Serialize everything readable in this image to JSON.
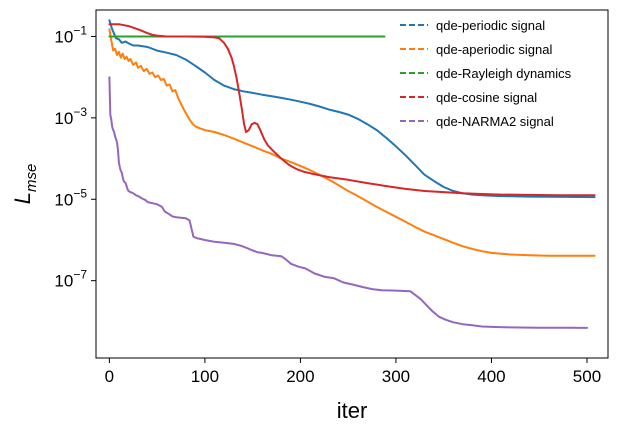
{
  "chart_data": {
    "type": "line",
    "title": "",
    "xlabel": "iter",
    "ylabel": {
      "main": "L",
      "sub": "mse"
    },
    "xlim": [
      -14,
      522
    ],
    "ylim_log10": [
      -8.9,
      -0.35
    ],
    "yscale": "log",
    "grid": false,
    "legend_position": "top-right",
    "x_ticks": [
      0,
      100,
      200,
      300,
      400,
      500
    ],
    "x_tick_labels": [
      "0",
      "100",
      "200",
      "300",
      "400",
      "500"
    ],
    "y_ticks_log10": [
      -1,
      -3,
      -5,
      -7
    ],
    "y_tick_labels": [
      {
        "base": "10",
        "exp": "−1"
      },
      {
        "base": "10",
        "exp": "−3"
      },
      {
        "base": "10",
        "exp": "−5"
      },
      {
        "base": "10",
        "exp": "−7"
      }
    ],
    "series": [
      {
        "name": "qde-periodic signal",
        "color": "#1f77b4",
        "points": [
          [
            0,
            0.25
          ],
          [
            3,
            0.15
          ],
          [
            7,
            0.09
          ],
          [
            10,
            0.085
          ],
          [
            13,
            0.07
          ],
          [
            17,
            0.075
          ],
          [
            20,
            0.068
          ],
          [
            25,
            0.06
          ],
          [
            30,
            0.06
          ],
          [
            40,
            0.055
          ],
          [
            50,
            0.045
          ],
          [
            60,
            0.04
          ],
          [
            70,
            0.035
          ],
          [
            80,
            0.027
          ],
          [
            90,
            0.019
          ],
          [
            100,
            0.013
          ],
          [
            110,
            0.0085
          ],
          [
            120,
            0.0062
          ],
          [
            130,
            0.0051
          ],
          [
            140,
            0.0045
          ],
          [
            150,
            0.0041
          ],
          [
            160,
            0.0037
          ],
          [
            170,
            0.0034
          ],
          [
            180,
            0.0031
          ],
          [
            190,
            0.0028
          ],
          [
            200,
            0.0025
          ],
          [
            210,
            0.0022
          ],
          [
            220,
            0.0019
          ],
          [
            230,
            0.0016
          ],
          [
            240,
            0.0014
          ],
          [
            250,
            0.0012
          ],
          [
            260,
            0.00095
          ],
          [
            270,
            0.0007
          ],
          [
            280,
            0.0005
          ],
          [
            290,
            0.00032
          ],
          [
            300,
            0.0002
          ],
          [
            310,
            0.00012
          ],
          [
            320,
            7e-05
          ],
          [
            330,
            4e-05
          ],
          [
            340,
            2.8e-05
          ],
          [
            350,
            2e-05
          ],
          [
            360,
            1.6e-05
          ],
          [
            370,
            1.4e-05
          ],
          [
            380,
            1.3e-05
          ],
          [
            390,
            1.25e-05
          ],
          [
            400,
            1.22e-05
          ],
          [
            420,
            1.18e-05
          ],
          [
            440,
            1.16e-05
          ],
          [
            460,
            1.15e-05
          ],
          [
            480,
            1.14e-05
          ],
          [
            508,
            1.13e-05
          ]
        ]
      },
      {
        "name": "qde-aperiodic signal",
        "color": "#ff7f0e",
        "points": [
          [
            0,
            0.15
          ],
          [
            2,
            0.08
          ],
          [
            4,
            0.045
          ],
          [
            6,
            0.05
          ],
          [
            8,
            0.035
          ],
          [
            10,
            0.042
          ],
          [
            12,
            0.03
          ],
          [
            14,
            0.038
          ],
          [
            16,
            0.028
          ],
          [
            18,
            0.032
          ],
          [
            20,
            0.025
          ],
          [
            22,
            0.028
          ],
          [
            25,
            0.02
          ],
          [
            28,
            0.023
          ],
          [
            30,
            0.017
          ],
          [
            33,
            0.019
          ],
          [
            36,
            0.014
          ],
          [
            39,
            0.016
          ],
          [
            42,
            0.012
          ],
          [
            45,
            0.013
          ],
          [
            48,
            0.01
          ],
          [
            51,
            0.011
          ],
          [
            54,
            0.0085
          ],
          [
            57,
            0.009
          ],
          [
            60,
            0.0062
          ],
          [
            63,
            0.0066
          ],
          [
            66,
            0.0045
          ],
          [
            69,
            0.0048
          ],
          [
            72,
            0.0031
          ],
          [
            75,
            0.0022
          ],
          [
            78,
            0.0016
          ],
          [
            81,
            0.0012
          ],
          [
            84,
            0.0009
          ],
          [
            87,
            0.00072
          ],
          [
            90,
            0.00062
          ],
          [
            95,
            0.00055
          ],
          [
            100,
            0.0005
          ],
          [
            110,
            0.00045
          ],
          [
            120,
            0.00038
          ],
          [
            130,
            0.00031
          ],
          [
            140,
            0.00025
          ],
          [
            150,
            0.0002
          ],
          [
            160,
            0.00016
          ],
          [
            170,
            0.00013
          ],
          [
            180,
            0.0001
          ],
          [
            190,
            8.2e-05
          ],
          [
            200,
            6.6e-05
          ],
          [
            210,
            5.2e-05
          ],
          [
            220,
            4e-05
          ],
          [
            230,
            3e-05
          ],
          [
            240,
            2.2e-05
          ],
          [
            250,
            1.6e-05
          ],
          [
            260,
            1.2e-05
          ],
          [
            270,
            8.8e-06
          ],
          [
            280,
            6.5e-06
          ],
          [
            290,
            4.9e-06
          ],
          [
            300,
            3.7e-06
          ],
          [
            310,
            2.8e-06
          ],
          [
            320,
            2.1e-06
          ],
          [
            330,
            1.6e-06
          ],
          [
            340,
            1.3e-06
          ],
          [
            350,
            1.05e-06
          ],
          [
            360,
            8.5e-07
          ],
          [
            370,
            7e-07
          ],
          [
            380,
            6e-07
          ],
          [
            390,
            5.3e-07
          ],
          [
            400,
            4.8e-07
          ],
          [
            420,
            4.4e-07
          ],
          [
            440,
            4.2e-07
          ],
          [
            460,
            4.1e-07
          ],
          [
            480,
            4.1e-07
          ],
          [
            508,
            4.1e-07
          ]
        ]
      },
      {
        "name": "qde-Rayleigh dynamics",
        "color": "#2ca02c",
        "points": [
          [
            0,
            0.1
          ],
          [
            50,
            0.1
          ],
          [
            100,
            0.1
          ],
          [
            150,
            0.1
          ],
          [
            200,
            0.1
          ],
          [
            250,
            0.1
          ],
          [
            288,
            0.1
          ]
        ]
      },
      {
        "name": "qde-cosine signal",
        "color": "#d62728",
        "points": [
          [
            0,
            0.2
          ],
          [
            10,
            0.2
          ],
          [
            20,
            0.18
          ],
          [
            30,
            0.15
          ],
          [
            40,
            0.12
          ],
          [
            45,
            0.11
          ],
          [
            50,
            0.105
          ],
          [
            60,
            0.1
          ],
          [
            80,
            0.1
          ],
          [
            100,
            0.098
          ],
          [
            110,
            0.095
          ],
          [
            115,
            0.09
          ],
          [
            120,
            0.07
          ],
          [
            124,
            0.05
          ],
          [
            128,
            0.03
          ],
          [
            130,
            0.02
          ],
          [
            133,
            0.01
          ],
          [
            136,
            0.004
          ],
          [
            139,
            0.0015
          ],
          [
            141,
            0.0007
          ],
          [
            143,
            0.00045
          ],
          [
            146,
            0.0005
          ],
          [
            149,
            0.0007
          ],
          [
            152,
            0.00075
          ],
          [
            155,
            0.0007
          ],
          [
            158,
            0.0005
          ],
          [
            162,
            0.0003
          ],
          [
            166,
            0.00021
          ],
          [
            172,
            0.00015
          ],
          [
            180,
            0.0001
          ],
          [
            188,
            7e-05
          ],
          [
            196,
            5.5e-05
          ],
          [
            204,
            4.7e-05
          ],
          [
            215,
            4.1e-05
          ],
          [
            230,
            3.5e-05
          ],
          [
            250,
            3e-05
          ],
          [
            270,
            2.5e-05
          ],
          [
            290,
            2.1e-05
          ],
          [
            310,
            1.8e-05
          ],
          [
            330,
            1.6e-05
          ],
          [
            350,
            1.5e-05
          ],
          [
            370,
            1.4e-05
          ],
          [
            390,
            1.35e-05
          ],
          [
            410,
            1.3e-05
          ],
          [
            440,
            1.28e-05
          ],
          [
            470,
            1.26e-05
          ],
          [
            508,
            1.25e-05
          ]
        ]
      },
      {
        "name": "qde-NARMA2 signal",
        "color": "#9467bd",
        "points": [
          [
            0,
            0.01
          ],
          [
            1,
            0.0012
          ],
          [
            2,
            0.0009
          ],
          [
            3,
            0.0006
          ],
          [
            4,
            0.0005
          ],
          [
            5,
            0.00045
          ],
          [
            6,
            0.00035
          ],
          [
            7,
            0.0003
          ],
          [
            8,
            0.00025
          ],
          [
            9,
            0.00016
          ],
          [
            10,
            8e-05
          ],
          [
            11,
            6e-05
          ],
          [
            12,
            5e-05
          ],
          [
            13,
            4.5e-05
          ],
          [
            14,
            3.5e-05
          ],
          [
            15,
            2.8e-05
          ],
          [
            17,
            2.5e-05
          ],
          [
            19,
            1.8e-05
          ],
          [
            20,
            1.6e-05
          ],
          [
            22,
            1.5e-05
          ],
          [
            25,
            1.4e-05
          ],
          [
            28,
            1.25e-05
          ],
          [
            30,
            1.2e-05
          ],
          [
            34,
            1.05e-05
          ],
          [
            38,
            9.5e-06
          ],
          [
            40,
            8.5e-06
          ],
          [
            45,
            8e-06
          ],
          [
            50,
            7.5e-06
          ],
          [
            55,
            6.5e-06
          ],
          [
            58,
            5e-06
          ],
          [
            62,
            4.4e-06
          ],
          [
            66,
            3.8e-06
          ],
          [
            70,
            3.6e-06
          ],
          [
            75,
            3.5e-06
          ],
          [
            80,
            3.4e-06
          ],
          [
            84,
            3e-06
          ],
          [
            88,
            1.2e-06
          ],
          [
            92,
            1.1e-06
          ],
          [
            96,
            1.05e-06
          ],
          [
            100,
            1e-06
          ],
          [
            110,
            9e-07
          ],
          [
            120,
            8.5e-07
          ],
          [
            130,
            8e-07
          ],
          [
            138,
            7.2e-07
          ],
          [
            145,
            6.2e-07
          ],
          [
            150,
            5.5e-07
          ],
          [
            155,
            5e-07
          ],
          [
            160,
            4.8e-07
          ],
          [
            170,
            4.2e-07
          ],
          [
            180,
            4e-07
          ],
          [
            185,
            3.3e-07
          ],
          [
            190,
            2.6e-07
          ],
          [
            198,
            2.2e-07
          ],
          [
            205,
            2e-07
          ],
          [
            215,
            1.5e-07
          ],
          [
            225,
            1.25e-07
          ],
          [
            235,
            1.15e-07
          ],
          [
            245,
            9e-08
          ],
          [
            255,
            8e-08
          ],
          [
            265,
            7e-08
          ],
          [
            275,
            6.2e-08
          ],
          [
            285,
            5.8e-08
          ],
          [
            300,
            5.7e-08
          ],
          [
            315,
            5.5e-08
          ],
          [
            320,
            4.5e-08
          ],
          [
            326,
            3.5e-08
          ],
          [
            332,
            2.5e-08
          ],
          [
            338,
            1.8e-08
          ],
          [
            345,
            1.3e-08
          ],
          [
            352,
            1.1e-08
          ],
          [
            360,
            9.5e-09
          ],
          [
            370,
            8.5e-09
          ],
          [
            380,
            8e-09
          ],
          [
            390,
            7.5e-09
          ],
          [
            400,
            7.3e-09
          ],
          [
            420,
            7.1e-09
          ],
          [
            450,
            7e-09
          ],
          [
            480,
            7e-09
          ],
          [
            500,
            6.9e-09
          ]
        ]
      }
    ]
  }
}
